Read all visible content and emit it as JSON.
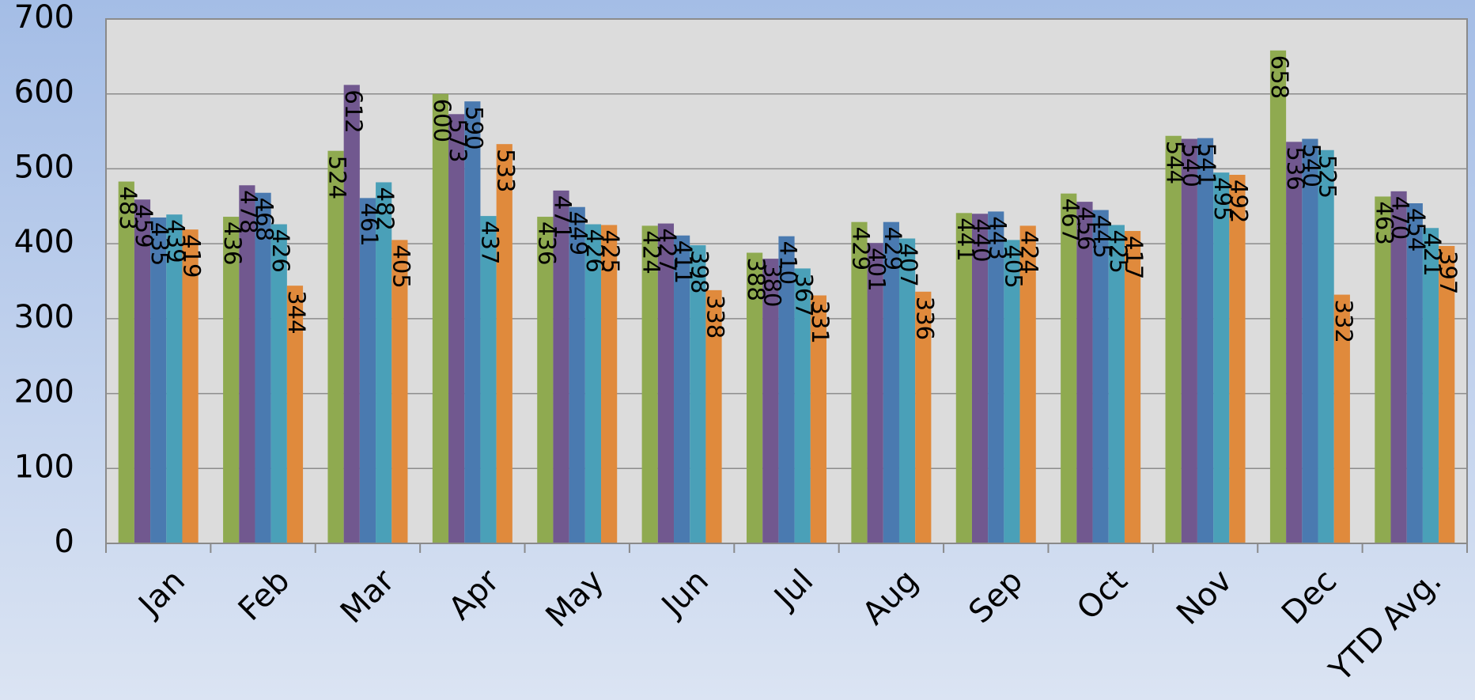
{
  "chart_data": {
    "type": "bar",
    "categories": [
      "Jan",
      "Feb",
      "Mar",
      "Apr",
      "May",
      "Jun",
      "Jul",
      "Aug",
      "Sep",
      "Oct",
      "Nov",
      "Dec",
      "YTD Avg."
    ],
    "series": [
      {
        "color": "#8faa50",
        "values": [
          483,
          436,
          524,
          600,
          436,
          424,
          388,
          429,
          441,
          467,
          544,
          658,
          463
        ]
      },
      {
        "color": "#71588f",
        "values": [
          459,
          478,
          612,
          573,
          471,
          427,
          380,
          401,
          440,
          456,
          540,
          536,
          470
        ]
      },
      {
        "color": "#4a7ab0",
        "values": [
          435,
          468,
          461,
          590,
          449,
          411,
          410,
          429,
          443,
          445,
          541,
          540,
          454
        ]
      },
      {
        "color": "#4aa0b8",
        "values": [
          439,
          426,
          482,
          437,
          426,
          398,
          367,
          407,
          405,
          425,
          495,
          525,
          421
        ]
      },
      {
        "color": "#e08a3c",
        "values": [
          419,
          344,
          405,
          533,
          425,
          338,
          331,
          336,
          424,
          417,
          492,
          332,
          397
        ]
      }
    ],
    "ylim": [
      0,
      700
    ],
    "yticks": [
      0,
      100,
      200,
      300,
      400,
      500,
      600,
      700
    ],
    "grid": true
  }
}
